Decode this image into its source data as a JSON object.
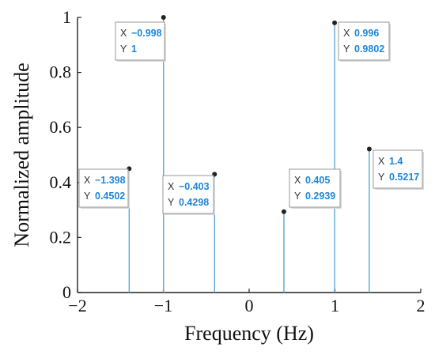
{
  "chart_data": {
    "type": "stem",
    "title": "",
    "xlabel": "Frequency (Hz)",
    "ylabel": "Normalized amplitude",
    "xlim": [
      -2,
      2
    ],
    "ylim": [
      0,
      1
    ],
    "xticks": [
      "−2",
      "−1",
      "0",
      "1",
      "2"
    ],
    "yticks": [
      "0",
      "0.2",
      "0.4",
      "0.6",
      "0.8",
      "1"
    ],
    "grid": false,
    "stem_color": "#5aa7d6",
    "marker_color": "#222222",
    "points": [
      {
        "x": -1.398,
        "y": 0.4502,
        "x_label": "−1.398",
        "y_label": "0.4502"
      },
      {
        "x": -0.998,
        "y": 1,
        "x_label": "−0.998",
        "y_label": "1"
      },
      {
        "x": -0.403,
        "y": 0.4298,
        "x_label": "−0.403",
        "y_label": "0.4298"
      },
      {
        "x": 0.405,
        "y": 0.2939,
        "x_label": "0.405",
        "y_label": "0.2939"
      },
      {
        "x": 0.996,
        "y": 0.9802,
        "x_label": "0.996",
        "y_label": "0.9802"
      },
      {
        "x": 1.4,
        "y": 0.5217,
        "x_label": "1.4",
        "y_label": "0.5217"
      }
    ],
    "datatip_x_key": "X",
    "datatip_y_key": "Y"
  }
}
